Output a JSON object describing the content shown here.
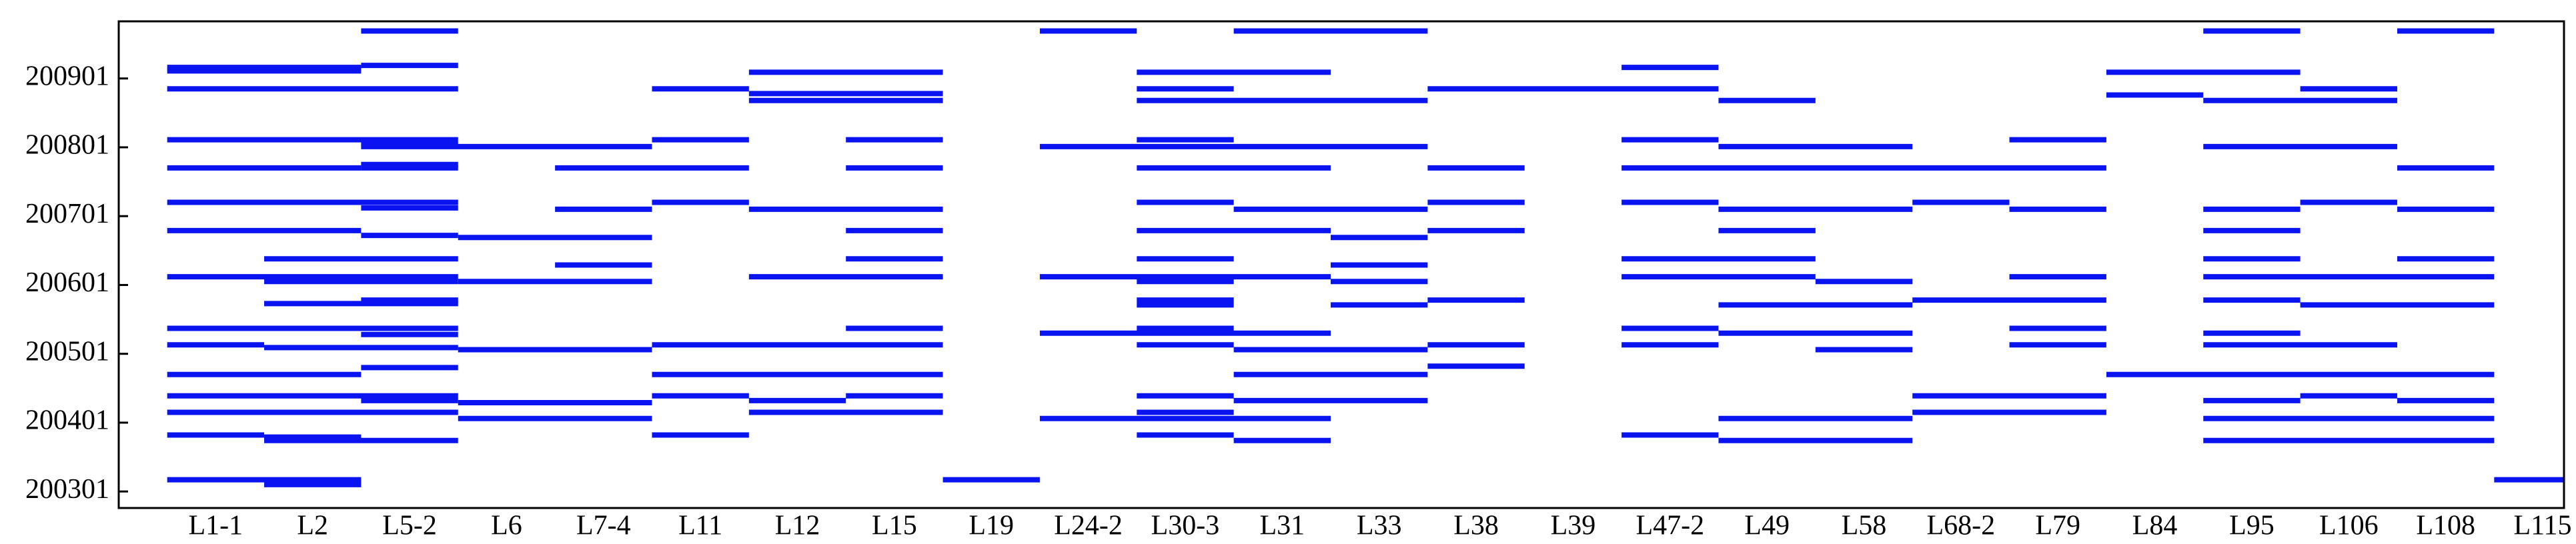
{
  "chart_data": {
    "type": "segments",
    "color": "#0a14f0",
    "categories": [
      "L1-1",
      "L2",
      "L5-2",
      "L6",
      "L7-4",
      "L11",
      "L12",
      "L15",
      "L19",
      "L24-2",
      "L30-3",
      "L31",
      "L33",
      "L38",
      "L39",
      "L47-2",
      "L49",
      "L58",
      "L68-2",
      "L79",
      "L84",
      "L95",
      "L106",
      "L108",
      "L115"
    ],
    "xlim": [
      -1,
      24.22
    ],
    "ylim": [
      200277,
      200984
    ],
    "yticks": [
      200301,
      200401,
      200501,
      200601,
      200701,
      200801,
      200901
    ],
    "segments": [
      [
        1.5,
        2.5,
        200970
      ],
      [
        -0.5,
        1.5,
        200917
      ],
      [
        -0.5,
        1.5,
        200912
      ],
      [
        1.5,
        2.5,
        200920
      ],
      [
        -0.5,
        2.5,
        200886
      ],
      [
        -0.5,
        2.5,
        200812
      ],
      [
        1.5,
        4.5,
        200802
      ],
      [
        1.5,
        2.5,
        200805
      ],
      [
        -0.5,
        1.5,
        200771
      ],
      [
        1.5,
        2.5,
        200776
      ],
      [
        1.5,
        2.5,
        200771
      ],
      [
        3.5,
        5.5,
        200771
      ],
      [
        -0.5,
        2.5,
        200721
      ],
      [
        1.5,
        2.5,
        200713
      ],
      [
        3.5,
        4.5,
        200711
      ],
      [
        -0.5,
        1.5,
        200680
      ],
      [
        1.5,
        2.5,
        200673
      ],
      [
        2.5,
        4.5,
        200670
      ],
      [
        0.5,
        2.5,
        200639
      ],
      [
        3.5,
        4.5,
        200630
      ],
      [
        -0.5,
        2.5,
        200613
      ],
      [
        0.5,
        2.5,
        200606
      ],
      [
        2.5,
        4.5,
        200606
      ],
      [
        1.5,
        2.5,
        200579
      ],
      [
        0.5,
        2.5,
        200574
      ],
      [
        -0.5,
        2.5,
        200538
      ],
      [
        1.5,
        2.5,
        200529
      ],
      [
        -0.5,
        0.5,
        200514
      ],
      [
        0.5,
        2.5,
        200510
      ],
      [
        2.5,
        4.5,
        200507
      ],
      [
        1.5,
        2.5,
        200481
      ],
      [
        -0.5,
        1.5,
        200471
      ],
      [
        -0.5,
        2.5,
        200440
      ],
      [
        1.5,
        2.5,
        200433
      ],
      [
        2.5,
        4.5,
        200430
      ],
      [
        -0.5,
        2.5,
        200416
      ],
      [
        2.5,
        4.5,
        200407
      ],
      [
        -0.5,
        0.5,
        200383
      ],
      [
        0.5,
        1.5,
        200380
      ],
      [
        0.5,
        2.5,
        200375
      ],
      [
        -0.5,
        1.5,
        200318
      ],
      [
        0.5,
        1.5,
        200311
      ],
      [
        4.5,
        5.5,
        200886
      ],
      [
        5.5,
        7.5,
        200910
      ],
      [
        5.5,
        7.5,
        200879
      ],
      [
        5.5,
        7.5,
        200869
      ],
      [
        4.5,
        5.5,
        200812
      ],
      [
        6.5,
        7.5,
        200812
      ],
      [
        6.5,
        7.5,
        200771
      ],
      [
        4.5,
        5.5,
        200721
      ],
      [
        5.5,
        7.5,
        200711
      ],
      [
        6.5,
        7.5,
        200680
      ],
      [
        6.5,
        7.5,
        200639
      ],
      [
        5.5,
        7.5,
        200613
      ],
      [
        6.5,
        7.5,
        200538
      ],
      [
        4.5,
        7.5,
        200514
      ],
      [
        4.5,
        7.5,
        200471
      ],
      [
        4.5,
        5.5,
        200440
      ],
      [
        5.5,
        6.5,
        200433
      ],
      [
        6.5,
        7.5,
        200440
      ],
      [
        5.5,
        7.5,
        200416
      ],
      [
        4.5,
        5.5,
        200383
      ],
      [
        7.5,
        8.5,
        200318
      ],
      [
        8.5,
        9.5,
        200970
      ],
      [
        10.5,
        12.5,
        200970
      ],
      [
        9.5,
        11.5,
        200910
      ],
      [
        9.5,
        10.5,
        200886
      ],
      [
        9.5,
        12.5,
        200869
      ],
      [
        12.5,
        15.5,
        200886
      ],
      [
        9.5,
        10.5,
        200812
      ],
      [
        8.5,
        12.5,
        200802
      ],
      [
        9.5,
        11.5,
        200771
      ],
      [
        12.5,
        13.5,
        200771
      ],
      [
        9.5,
        10.5,
        200721
      ],
      [
        10.5,
        12.5,
        200711
      ],
      [
        12.5,
        13.5,
        200721
      ],
      [
        9.5,
        11.5,
        200680
      ],
      [
        11.5,
        12.5,
        200670
      ],
      [
        12.5,
        13.5,
        200680
      ],
      [
        9.5,
        10.5,
        200639
      ],
      [
        11.5,
        12.5,
        200630
      ],
      [
        8.5,
        11.5,
        200613
      ],
      [
        9.5,
        10.5,
        200606
      ],
      [
        11.5,
        12.5,
        200606
      ],
      [
        9.5,
        10.5,
        200579
      ],
      [
        9.5,
        10.5,
        200572
      ],
      [
        11.5,
        12.5,
        200572
      ],
      [
        12.5,
        13.5,
        200579
      ],
      [
        8.5,
        11.5,
        200531
      ],
      [
        9.5,
        10.5,
        200538
      ],
      [
        9.5,
        10.5,
        200514
      ],
      [
        10.5,
        12.5,
        200507
      ],
      [
        12.5,
        13.5,
        200514
      ],
      [
        12.5,
        13.5,
        200483
      ],
      [
        10.5,
        12.5,
        200471
      ],
      [
        9.5,
        10.5,
        200440
      ],
      [
        10.5,
        12.5,
        200433
      ],
      [
        8.5,
        11.5,
        200407
      ],
      [
        9.5,
        10.5,
        200416
      ],
      [
        9.5,
        10.5,
        200383
      ],
      [
        10.5,
        11.5,
        200375
      ],
      [
        14.5,
        15.5,
        200917
      ],
      [
        15.5,
        16.5,
        200869
      ],
      [
        14.5,
        15.5,
        200812
      ],
      [
        15.5,
        17.5,
        200802
      ],
      [
        14.5,
        19.5,
        200771
      ],
      [
        14.5,
        15.5,
        200721
      ],
      [
        15.5,
        17.5,
        200711
      ],
      [
        17.5,
        18.5,
        200721
      ],
      [
        18.5,
        19.5,
        200711
      ],
      [
        15.5,
        16.5,
        200680
      ],
      [
        14.5,
        16.5,
        200639
      ],
      [
        14.5,
        16.5,
        200613
      ],
      [
        16.5,
        17.5,
        200606
      ],
      [
        18.5,
        19.5,
        200613
      ],
      [
        15.5,
        17.5,
        200572
      ],
      [
        17.5,
        19.5,
        200579
      ],
      [
        14.5,
        15.5,
        200538
      ],
      [
        15.5,
        17.5,
        200531
      ],
      [
        18.5,
        19.5,
        200538
      ],
      [
        14.5,
        15.5,
        200514
      ],
      [
        16.5,
        17.5,
        200507
      ],
      [
        18.5,
        19.5,
        200514
      ],
      [
        17.5,
        19.5,
        200440
      ],
      [
        17.5,
        19.5,
        200416
      ],
      [
        14.5,
        15.5,
        200383
      ],
      [
        15.5,
        17.5,
        200375
      ],
      [
        15.5,
        17.5,
        200407
      ],
      [
        18.5,
        19.5,
        200812
      ],
      [
        20.5,
        21.5,
        200970
      ],
      [
        22.5,
        23.5,
        200970
      ],
      [
        19.5,
        21.5,
        200910
      ],
      [
        19.5,
        20.5,
        200877
      ],
      [
        20.5,
        22.5,
        200869
      ],
      [
        21.5,
        22.5,
        200886
      ],
      [
        20.5,
        22.5,
        200802
      ],
      [
        22.5,
        23.5,
        200771
      ],
      [
        20.5,
        21.5,
        200711
      ],
      [
        21.5,
        22.5,
        200721
      ],
      [
        22.5,
        23.5,
        200711
      ],
      [
        20.5,
        21.5,
        200680
      ],
      [
        20.5,
        21.5,
        200639
      ],
      [
        22.5,
        23.5,
        200639
      ],
      [
        20.5,
        23.5,
        200613
      ],
      [
        20.5,
        21.5,
        200579
      ],
      [
        21.5,
        23.5,
        200572
      ],
      [
        20.5,
        21.5,
        200531
      ],
      [
        20.5,
        22.5,
        200514
      ],
      [
        19.5,
        23.5,
        200471
      ],
      [
        20.5,
        21.5,
        200433
      ],
      [
        21.5,
        22.5,
        200440
      ],
      [
        22.5,
        23.5,
        200433
      ],
      [
        20.5,
        23.5,
        200407
      ],
      [
        20.5,
        23.5,
        200375
      ],
      [
        23.5,
        24.5,
        200318
      ]
    ]
  }
}
